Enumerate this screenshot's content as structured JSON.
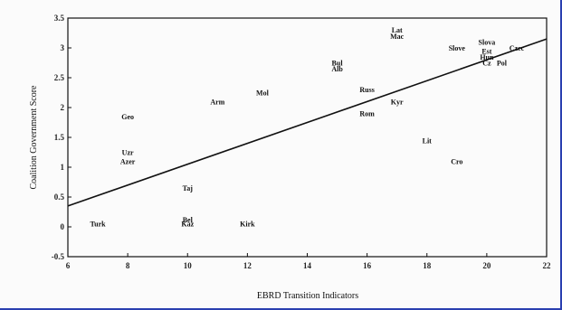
{
  "chart_data": {
    "type": "scatter",
    "title": "",
    "xlabel": "EBRD Transition Indicators",
    "ylabel": "Coalition Government Score",
    "xlim": [
      6,
      22
    ],
    "ylim": [
      -0.5,
      3.5
    ],
    "xticks": [
      "6",
      "8",
      "10",
      "12",
      "14",
      "16",
      "18",
      "20",
      "22"
    ],
    "yticks": [
      "3.5",
      "3",
      "2.5",
      "2",
      "1.5",
      "1",
      "0.5",
      "0",
      "-0.5"
    ],
    "grid": false,
    "legend": "none",
    "points": [
      {
        "label": "Turk",
        "x": 7.0,
        "y": 0.05
      },
      {
        "label": "Uzr",
        "x": 8.0,
        "y": 1.25
      },
      {
        "label": "Azer",
        "x": 8.0,
        "y": 1.1
      },
      {
        "label": "Geo",
        "x": 8.0,
        "y": 1.85
      },
      {
        "label": "Taj",
        "x": 10.0,
        "y": 0.65
      },
      {
        "label": "Bel",
        "x": 10.0,
        "y": 0.12
      },
      {
        "label": "Kaz",
        "x": 10.0,
        "y": 0.05
      },
      {
        "label": "Arm",
        "x": 11.0,
        "y": 2.1
      },
      {
        "label": "Kirk",
        "x": 12.0,
        "y": 0.05
      },
      {
        "label": "Mol",
        "x": 12.5,
        "y": 2.25
      },
      {
        "label": "Bul",
        "x": 15.0,
        "y": 2.75
      },
      {
        "label": "Alb",
        "x": 15.0,
        "y": 2.65
      },
      {
        "label": "Russ",
        "x": 16.0,
        "y": 2.3
      },
      {
        "label": "Rom",
        "x": 16.0,
        "y": 1.9
      },
      {
        "label": "Kyr",
        "x": 17.0,
        "y": 2.1
      },
      {
        "label": "Lat",
        "x": 17.0,
        "y": 3.3
      },
      {
        "label": "Mac",
        "x": 17.0,
        "y": 3.2
      },
      {
        "label": "Lit",
        "x": 18.0,
        "y": 1.45
      },
      {
        "label": "Cro",
        "x": 19.0,
        "y": 1.1
      },
      {
        "label": "Slove",
        "x": 19.0,
        "y": 3.0
      },
      {
        "label": "Slova",
        "x": 20.0,
        "y": 3.1
      },
      {
        "label": "Est",
        "x": 20.0,
        "y": 2.95
      },
      {
        "label": "Hun",
        "x": 20.0,
        "y": 2.85
      },
      {
        "label": "Cz",
        "x": 20.0,
        "y": 2.75
      },
      {
        "label": "Pol",
        "x": 20.5,
        "y": 2.75
      },
      {
        "label": "Czec",
        "x": 21.0,
        "y": 3.0
      }
    ],
    "trendline": {
      "x": [
        6,
        22
      ],
      "y": [
        0.35,
        3.15
      ]
    }
  }
}
